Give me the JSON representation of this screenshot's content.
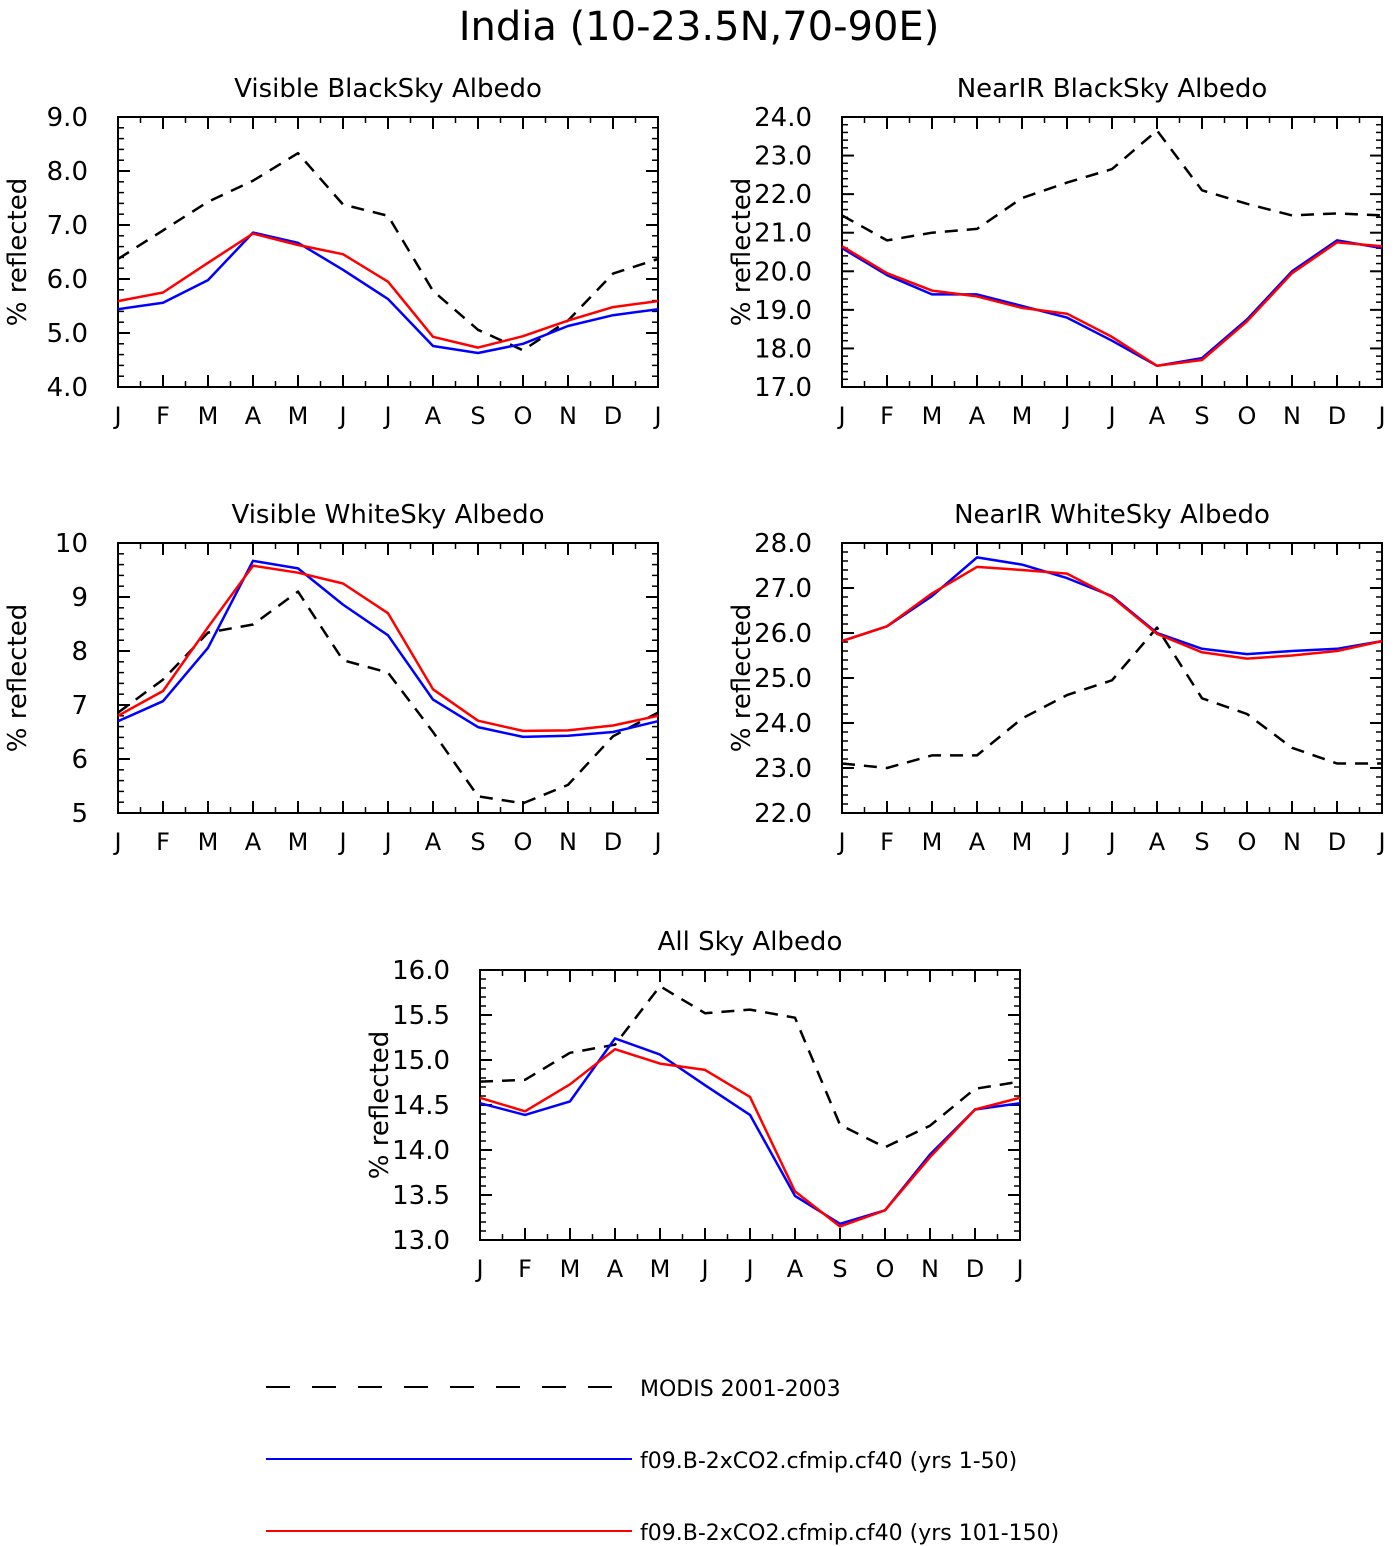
{
  "figure": {
    "title": "India (10-23.5N,70-90E)"
  },
  "chart_data": [
    {
      "type": "line",
      "title": "Visible BlackSky Albedo",
      "ylabel": "% reflected",
      "xlabel": "",
      "categories": [
        "J",
        "F",
        "M",
        "A",
        "M",
        "J",
        "J",
        "A",
        "S",
        "O",
        "N",
        "D",
        "J"
      ],
      "ylim": [
        4.0,
        9.0
      ],
      "yticks": [
        4.0,
        5.0,
        6.0,
        7.0,
        8.0,
        9.0
      ],
      "ytick_labels": [
        "4.0",
        "5.0",
        "6.0",
        "7.0",
        "8.0",
        "9.0"
      ],
      "series": [
        {
          "name": "MODIS 2001-2003",
          "values": [
            6.37,
            6.9,
            7.43,
            7.82,
            8.33,
            7.38,
            7.17,
            5.78,
            5.06,
            4.68,
            5.23,
            6.1,
            6.37
          ]
        },
        {
          "name": "f09.B-2xCO2.cfmip.cf40 (yrs 1-50)",
          "values": [
            5.44,
            5.56,
            5.98,
            6.86,
            6.67,
            6.17,
            5.63,
            4.76,
            4.63,
            4.8,
            5.13,
            5.33,
            5.44
          ]
        },
        {
          "name": "f09.B-2xCO2.cfmip.cf40 (yrs 101-150)",
          "values": [
            5.59,
            5.75,
            6.3,
            6.84,
            6.63,
            6.46,
            5.95,
            4.93,
            4.73,
            4.94,
            5.23,
            5.48,
            5.59
          ]
        }
      ]
    },
    {
      "type": "line",
      "title": "NearIR BlackSky Albedo",
      "ylabel": "% reflected",
      "xlabel": "",
      "categories": [
        "J",
        "F",
        "M",
        "A",
        "M",
        "J",
        "J",
        "A",
        "S",
        "O",
        "N",
        "D",
        "J"
      ],
      "ylim": [
        17.0,
        24.0
      ],
      "yticks": [
        17.0,
        18.0,
        19.0,
        20.0,
        21.0,
        22.0,
        23.0,
        24.0
      ],
      "ytick_labels": [
        "17.0",
        "18.0",
        "19.0",
        "20.0",
        "21.0",
        "22.0",
        "23.0",
        "24.0"
      ],
      "series": [
        {
          "name": "MODIS 2001-2003",
          "values": [
            21.45,
            20.8,
            21.0,
            21.1,
            21.9,
            22.3,
            22.65,
            23.65,
            22.1,
            21.75,
            21.45,
            21.5,
            21.45
          ]
        },
        {
          "name": "f09.B-2xCO2.cfmip.cf40 (yrs 1-50)",
          "values": [
            20.6,
            19.9,
            19.4,
            19.4,
            19.1,
            18.8,
            18.2,
            17.55,
            17.75,
            18.75,
            20.0,
            20.8,
            20.6
          ]
        },
        {
          "name": "f09.B-2xCO2.cfmip.cf40 (yrs 101-150)",
          "values": [
            20.65,
            19.95,
            19.5,
            19.35,
            19.05,
            18.9,
            18.3,
            17.55,
            17.7,
            18.7,
            19.95,
            20.75,
            20.65
          ]
        }
      ]
    },
    {
      "type": "line",
      "title": "Visible WhiteSky Albedo",
      "ylabel": "% reflected",
      "xlabel": "",
      "categories": [
        "J",
        "F",
        "M",
        "A",
        "M",
        "J",
        "J",
        "A",
        "S",
        "O",
        "N",
        "D",
        "J"
      ],
      "ylim": [
        5,
        10
      ],
      "yticks": [
        5,
        6,
        7,
        8,
        9,
        10
      ],
      "ytick_labels": [
        "5",
        "6",
        "7",
        "8",
        "9",
        "10"
      ],
      "series": [
        {
          "name": "MODIS 2001-2003",
          "values": [
            6.86,
            7.47,
            8.34,
            8.49,
            9.1,
            7.83,
            7.6,
            6.5,
            5.31,
            5.18,
            5.52,
            6.42,
            6.86
          ]
        },
        {
          "name": "f09.B-2xCO2.cfmip.cf40 (yrs 1-50)",
          "values": [
            6.7,
            7.07,
            8.06,
            9.67,
            9.53,
            8.86,
            8.29,
            7.1,
            6.59,
            6.41,
            6.43,
            6.5,
            6.7
          ]
        },
        {
          "name": "f09.B-2xCO2.cfmip.cf40 (yrs 101-150)",
          "values": [
            6.8,
            7.26,
            8.44,
            9.58,
            9.45,
            9.25,
            8.7,
            7.29,
            6.71,
            6.52,
            6.53,
            6.62,
            6.8
          ]
        }
      ]
    },
    {
      "type": "line",
      "title": "NearIR WhiteSky Albedo",
      "ylabel": "% reflected",
      "xlabel": "",
      "categories": [
        "J",
        "F",
        "M",
        "A",
        "M",
        "J",
        "J",
        "A",
        "S",
        "O",
        "N",
        "D",
        "J"
      ],
      "ylim": [
        22.0,
        28.0
      ],
      "yticks": [
        22.0,
        23.0,
        24.0,
        25.0,
        26.0,
        27.0,
        28.0
      ],
      "ytick_labels": [
        "22.0",
        "23.0",
        "24.0",
        "25.0",
        "26.0",
        "27.0",
        "28.0"
      ],
      "series": [
        {
          "name": "MODIS 2001-2003",
          "values": [
            23.1,
            23.0,
            23.28,
            23.28,
            24.1,
            24.62,
            24.95,
            26.12,
            24.55,
            24.2,
            23.45,
            23.1,
            23.1
          ]
        },
        {
          "name": "f09.B-2xCO2.cfmip.cf40 (yrs 1-50)",
          "values": [
            25.82,
            26.15,
            26.82,
            27.68,
            27.52,
            27.22,
            26.82,
            26.0,
            25.65,
            25.53,
            25.6,
            25.65,
            25.82
          ]
        },
        {
          "name": "f09.B-2xCO2.cfmip.cf40 (yrs 101-150)",
          "values": [
            25.82,
            26.15,
            26.88,
            27.47,
            27.4,
            27.32,
            26.8,
            25.98,
            25.57,
            25.43,
            25.5,
            25.6,
            25.82
          ]
        }
      ]
    },
    {
      "type": "line",
      "title": "All Sky Albedo",
      "ylabel": "% reflected",
      "xlabel": "",
      "categories": [
        "J",
        "F",
        "M",
        "A",
        "M",
        "J",
        "J",
        "A",
        "S",
        "O",
        "N",
        "D",
        "J"
      ],
      "ylim": [
        13.0,
        16.0
      ],
      "yticks": [
        13.0,
        13.5,
        14.0,
        14.5,
        15.0,
        15.5,
        16.0
      ],
      "ytick_labels": [
        "13.0",
        "13.5",
        "14.0",
        "14.5",
        "15.0",
        "15.5",
        "16.0"
      ],
      "series": [
        {
          "name": "MODIS 2001-2003",
          "values": [
            14.76,
            14.78,
            15.08,
            15.17,
            15.82,
            15.52,
            15.56,
            15.47,
            14.28,
            14.03,
            14.27,
            14.68,
            14.76
          ]
        },
        {
          "name": "f09.B-2xCO2.cfmip.cf40 (yrs 1-50)",
          "values": [
            14.52,
            14.39,
            14.54,
            15.24,
            15.06,
            14.72,
            14.39,
            13.49,
            13.18,
            13.33,
            13.95,
            14.45,
            14.52
          ]
        },
        {
          "name": "f09.B-2xCO2.cfmip.cf40 (yrs 101-150)",
          "values": [
            14.58,
            14.43,
            14.73,
            15.12,
            14.96,
            14.89,
            14.59,
            13.54,
            13.15,
            13.33,
            13.92,
            14.45,
            14.58
          ]
        }
      ]
    }
  ],
  "legend": [
    {
      "label": "MODIS 2001-2003",
      "color": "#000000",
      "style": "dashed"
    },
    {
      "label": "f09.B-2xCO2.cfmip.cf40 (yrs 1-50)",
      "color": "#0000ff",
      "style": "solid"
    },
    {
      "label": "f09.B-2xCO2.cfmip.cf40 (yrs 101-150)",
      "color": "#ff0000",
      "style": "solid"
    }
  ],
  "series_colors": [
    "#000000",
    "#0000ff",
    "#ff0000"
  ]
}
